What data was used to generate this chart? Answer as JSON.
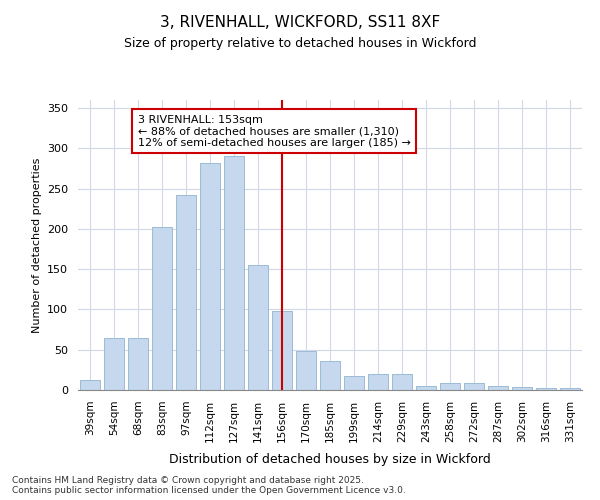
{
  "title": "3, RIVENHALL, WICKFORD, SS11 8XF",
  "subtitle": "Size of property relative to detached houses in Wickford",
  "xlabel": "Distribution of detached houses by size in Wickford",
  "ylabel": "Number of detached properties",
  "categories": [
    "39sqm",
    "54sqm",
    "68sqm",
    "83sqm",
    "97sqm",
    "112sqm",
    "127sqm",
    "141sqm",
    "156sqm",
    "170sqm",
    "185sqm",
    "199sqm",
    "214sqm",
    "229sqm",
    "243sqm",
    "258sqm",
    "272sqm",
    "287sqm",
    "302sqm",
    "316sqm",
    "331sqm"
  ],
  "bar_heights": [
    13,
    65,
    65,
    202,
    242,
    282,
    290,
    155,
    98,
    48,
    36,
    18,
    20,
    20,
    5,
    9,
    9,
    5,
    4,
    3,
    2
  ],
  "bar_color": "#c5d8ee",
  "bar_edge_color": "#9abbd8",
  "vline_index": 8,
  "vline_color": "#cc0000",
  "annotation_text": "3 RIVENHALL: 153sqm\n← 88% of detached houses are smaller (1,310)\n12% of semi-detached houses are larger (185) →",
  "ylim_max": 360,
  "yticks": [
    0,
    50,
    100,
    150,
    200,
    250,
    300,
    350
  ],
  "footer": "Contains HM Land Registry data © Crown copyright and database right 2025.\nContains public sector information licensed under the Open Government Licence v3.0.",
  "bg_color": "#ffffff",
  "plot_bg_color": "#ffffff",
  "grid_color": "#d0d8e8"
}
